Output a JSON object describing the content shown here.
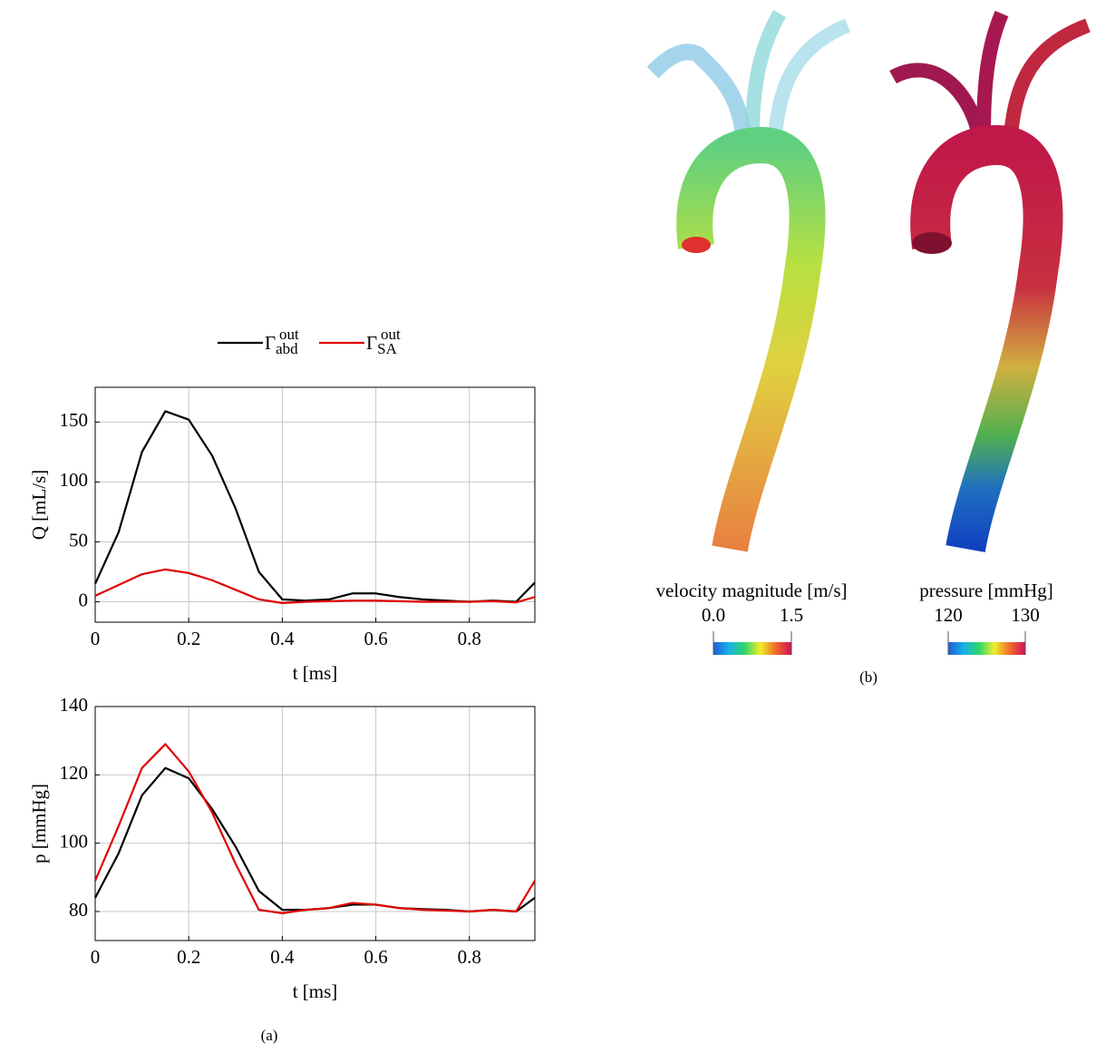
{
  "chart_data": [
    {
      "type": "line",
      "ylabel": "Q [mL/s]",
      "xlabel": "t [ms]",
      "legend": true,
      "x": [
        0,
        0.05,
        0.1,
        0.15,
        0.2,
        0.25,
        0.3,
        0.35,
        0.4,
        0.45,
        0.5,
        0.55,
        0.6,
        0.65,
        0.7,
        0.75,
        0.8,
        0.85,
        0.9,
        0.94
      ],
      "series": [
        {
          "name": "Γ",
          "name_sub": "abd",
          "name_sup": "out",
          "color": "#000000",
          "values": [
            15,
            58,
            125,
            159,
            152,
            122,
            78,
            25,
            2,
            1,
            2,
            7,
            7,
            4,
            2,
            1,
            0,
            1,
            0,
            16
          ]
        },
        {
          "name": "Γ",
          "name_sub": "SA",
          "name_sup": "out",
          "color": "#e00000",
          "values": [
            5,
            14,
            23,
            27,
            24,
            18,
            10,
            2,
            -1,
            0,
            0.5,
            1,
            1,
            0.5,
            0,
            0,
            0,
            0.5,
            -0.5,
            4
          ]
        }
      ],
      "xlim": [
        0,
        0.94
      ],
      "xticks": [
        0,
        0.2,
        0.4,
        0.6,
        0.8
      ],
      "ylim": [
        -17,
        179
      ],
      "yticks": [
        0,
        50,
        100,
        150
      ],
      "grid": true
    },
    {
      "type": "line",
      "ylabel": "p [mmHg]",
      "xlabel": "t [ms]",
      "legend": false,
      "x": [
        0,
        0.05,
        0.1,
        0.15,
        0.2,
        0.25,
        0.3,
        0.35,
        0.4,
        0.45,
        0.5,
        0.55,
        0.6,
        0.65,
        0.7,
        0.75,
        0.8,
        0.85,
        0.9,
        0.94
      ],
      "series": [
        {
          "color": "#000000",
          "values": [
            84,
            97,
            114,
            122,
            119,
            110,
            99,
            86,
            80.5,
            80.5,
            81,
            82,
            82,
            81,
            80.7,
            80.5,
            80,
            80.5,
            80,
            84
          ]
        },
        {
          "color": "#e00000",
          "values": [
            89,
            105,
            122,
            129,
            121,
            109,
            94,
            80.5,
            79.5,
            80.5,
            81,
            82.5,
            82,
            81,
            80.5,
            80.3,
            80,
            80.5,
            80,
            89
          ]
        }
      ],
      "xlim": [
        0,
        0.94
      ],
      "xticks": [
        0,
        0.2,
        0.4,
        0.6,
        0.8
      ],
      "ylim": [
        71.5,
        140
      ],
      "yticks": [
        80,
        100,
        120,
        140
      ],
      "grid": true
    }
  ],
  "colorbars": [
    {
      "label": "velocity magnitude [m/s]",
      "range": [
        0,
        1.5
      ],
      "ticks": [
        {
          "value": 0,
          "label": "0.0"
        },
        {
          "value": 1.5,
          "label": "1.5"
        }
      ]
    },
    {
      "label": "pressure [mmHg]",
      "range": [
        120,
        130
      ],
      "ticks": [
        120,
        130
      ]
    }
  ],
  "captions": [
    "(a)",
    "(b)"
  ]
}
